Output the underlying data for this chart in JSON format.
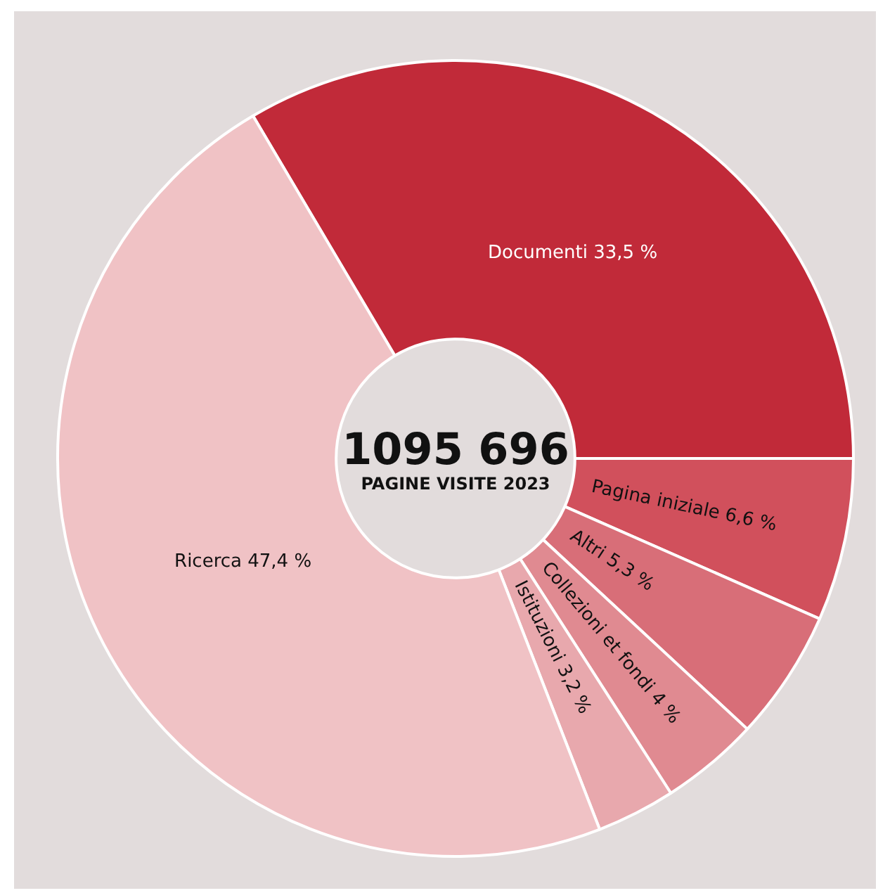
{
  "chart_data": {
    "type": "donut",
    "title": "1095 696",
    "subtitle": "PAGINE VISITE 2023",
    "categories": [
      "Documenti",
      "Pagina iniziale",
      "Altri",
      "Collezioni et fondi",
      "Istituzioni",
      "Ricerca"
    ],
    "values": [
      33.5,
      6.6,
      5.3,
      4,
      3.2,
      47.4
    ],
    "value_labels": [
      "33,5 %",
      "6,6 %",
      "5,3 %",
      "4 %",
      "3,2 %",
      "47,4 %"
    ],
    "colors": [
      "#c12a39",
      "#d1505c",
      "#d86e78",
      "#e08a91",
      "#e8a8ad",
      "#f0c2c5"
    ],
    "legend": false
  }
}
